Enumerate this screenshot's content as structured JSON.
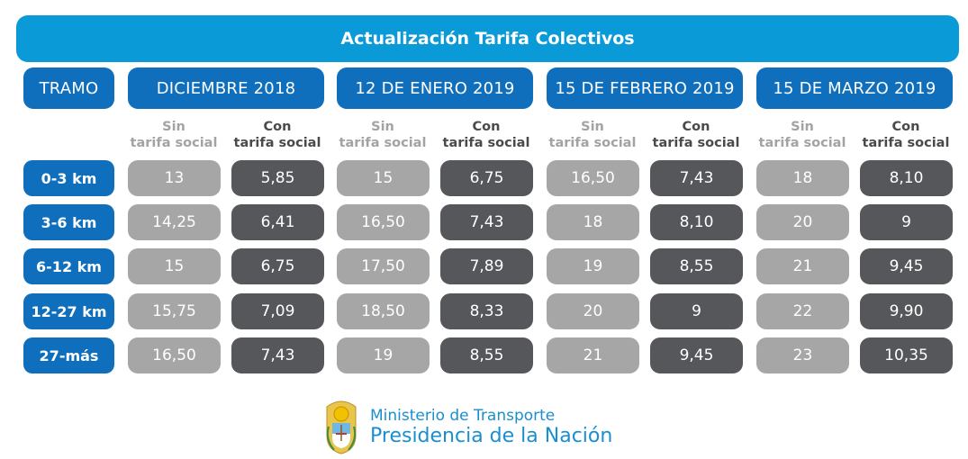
{
  "title": "Actualización Tarifa Colectivos",
  "tramo_header": "TRAMO",
  "periods": [
    "DICIEMBRE 2018",
    "12 DE ENERO 2019",
    "15 DE FEBRERO 2019",
    "15 DE MARZO 2019"
  ],
  "subheaders": {
    "sin_line1": "Sin",
    "sin_line2": "tarifa social",
    "con_line1": "Con",
    "con_line2": "tarifa social"
  },
  "rows": [
    {
      "tramo": "0-3 km",
      "values": [
        "13",
        "5,85",
        "15",
        "6,75",
        "16,50",
        "7,43",
        "18",
        "8,10"
      ]
    },
    {
      "tramo": "3-6 km",
      "values": [
        "14,25",
        "6,41",
        "16,50",
        "7,43",
        "18",
        "8,10",
        "20",
        "9"
      ]
    },
    {
      "tramo": "6-12 km",
      "values": [
        "15",
        "6,75",
        "17,50",
        "7,89",
        "19",
        "8,55",
        "21",
        "9,45"
      ]
    },
    {
      "tramo": "12-27 km",
      "values": [
        "15,75",
        "7,09",
        "18,50",
        "8,33",
        "20",
        "9",
        "22",
        "9,90"
      ]
    },
    {
      "tramo": "27-más",
      "values": [
        "16,50",
        "7,43",
        "19",
        "8,55",
        "21",
        "9,45",
        "23",
        "10,35"
      ]
    }
  ],
  "footer": {
    "line1": "Ministerio de Transporte",
    "line2": "Presidencia de la Nación"
  },
  "colors": {
    "title_bar": "#0a9ad8",
    "header": "#0f6fbd",
    "sin_cell": "#a6a6a6",
    "con_cell": "#55575b",
    "logo_text": "#1a8fcf"
  }
}
